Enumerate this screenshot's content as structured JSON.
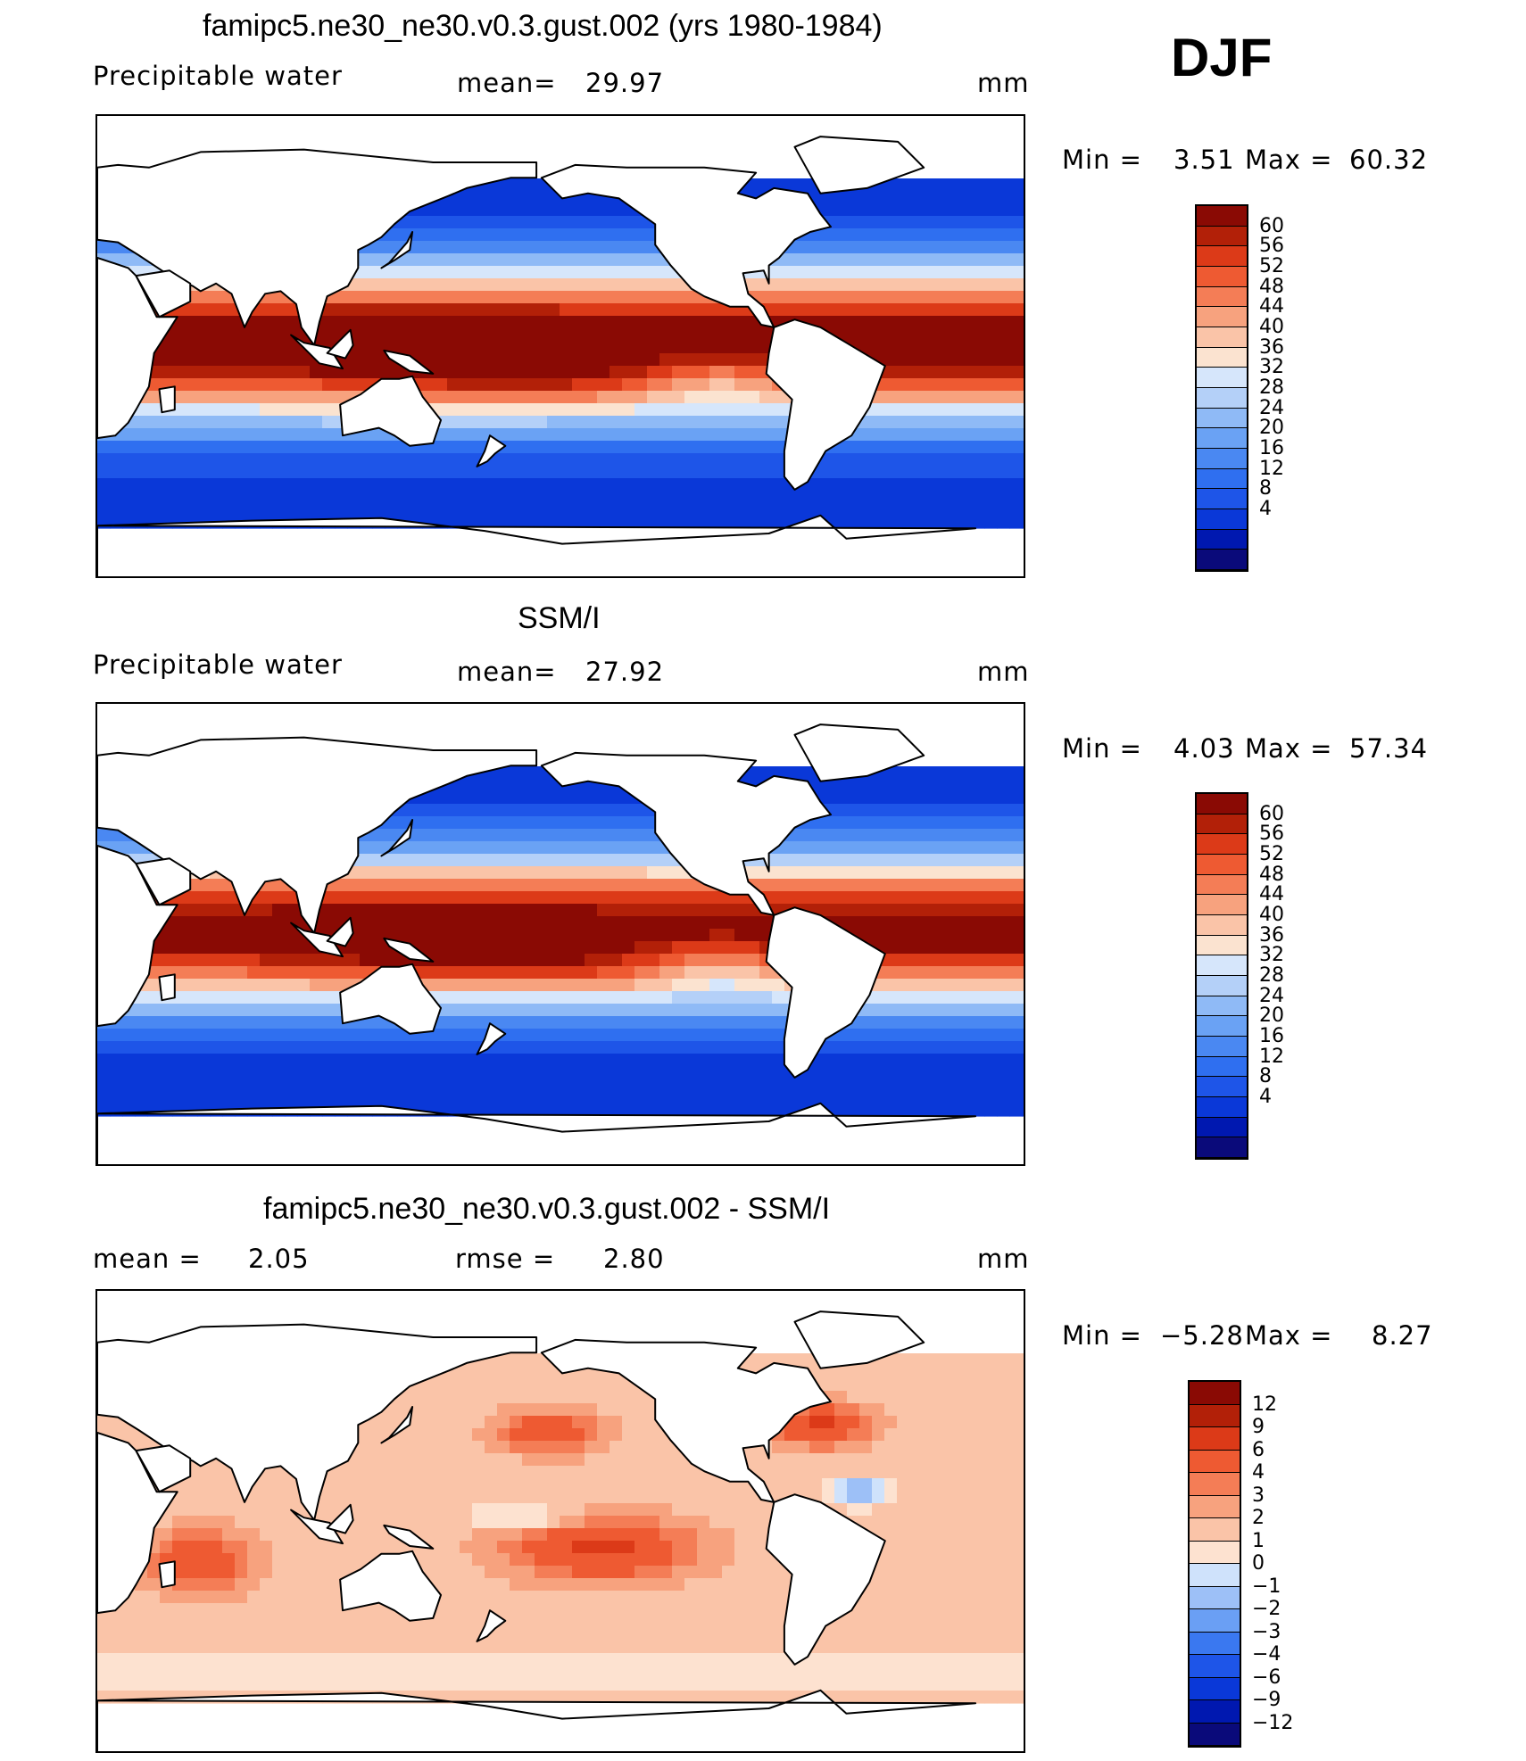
{
  "header": {
    "model_title": "famipc5.ne30_ne30.v0.3.gust.002 (yrs 1980-1984)",
    "season": "DJF"
  },
  "panels": [
    {
      "id": "model",
      "title": "famipc5.ne30_ne30.v0.3.gust.002 (yrs 1980-1984)",
      "left_label": "Precipitable  water",
      "mean_label": "mean=",
      "mean_value": "29.97",
      "units": "mm",
      "stats": {
        "min_label": "Min  =",
        "min_value": "3.51",
        "max_label": "Max  =",
        "max_value": "60.32"
      },
      "levels": [
        "60",
        "56",
        "52",
        "48",
        "44",
        "40",
        "36",
        "32",
        "28",
        "24",
        "20",
        "16",
        "12",
        "8",
        "4"
      ]
    },
    {
      "id": "obs",
      "title": "SSM/I",
      "left_label": "Precipitable  water",
      "mean_label": "mean=",
      "mean_value": "27.92",
      "units": "mm",
      "stats": {
        "min_label": "Min  =",
        "min_value": "4.03",
        "max_label": "Max  =",
        "max_value": "57.34"
      },
      "levels": [
        "60",
        "56",
        "52",
        "48",
        "44",
        "40",
        "36",
        "32",
        "28",
        "24",
        "20",
        "16",
        "12",
        "8",
        "4"
      ]
    },
    {
      "id": "diff",
      "title": "famipc5.ne30_ne30.v0.3.gust.002 - SSM/I",
      "mean_label": "mean  =",
      "mean_value": "2.05",
      "rmse_label": "rmse  =",
      "rmse_value": "2.80",
      "units": "mm",
      "stats": {
        "min_label": "Min  =",
        "min_value": "−5.28",
        "max_label": "Max  =",
        "max_value": "8.27"
      },
      "levels": [
        "12",
        "9",
        "6",
        "4",
        "3",
        "2",
        "1",
        "0",
        "−1",
        "−2",
        "−3",
        "−4",
        "−6",
        "−9",
        "−12"
      ]
    }
  ],
  "colors": {
    "pw_scale": [
      "#0a0a7a",
      "#0018b0",
      "#0a38d8",
      "#1e55e8",
      "#2f6ff0",
      "#4a88f2",
      "#6aa2f4",
      "#8fbaf6",
      "#b4d0f8",
      "#d6e6fb",
      "#fbe3d0",
      "#fac4a8",
      "#f7a27e",
      "#f47d56",
      "#ee5a32",
      "#dc3a18",
      "#b22008",
      "#8a0a04"
    ],
    "diff_scale": [
      "#0a0a7a",
      "#0018b0",
      "#0a38d8",
      "#1e55e8",
      "#3a78f0",
      "#6a9ff4",
      "#9dc0f7",
      "#cfe2fb",
      "#fde2d0",
      "#fac4a8",
      "#f7a27e",
      "#f47d56",
      "#ee5a32",
      "#dc3a18",
      "#b22008",
      "#8a0a04"
    ],
    "land": "#ffffff",
    "coast": "#000000"
  },
  "chart_data": [
    {
      "type": "heatmap",
      "title": "famipc5.ne30_ne30.v0.3.gust.002 (yrs 1980-1984)",
      "subtitle": "Precipitable water",
      "units": "mm",
      "mean": 29.97,
      "min": 3.51,
      "max": 60.32,
      "contour_levels": [
        4,
        8,
        12,
        16,
        20,
        24,
        28,
        32,
        36,
        40,
        44,
        48,
        52,
        56,
        60
      ],
      "x": "longitude (0 to 360, centered on Pacific)",
      "y": "latitude (-90 to 90)"
    },
    {
      "type": "heatmap",
      "title": "SSM/I",
      "subtitle": "Precipitable water",
      "units": "mm",
      "mean": 27.92,
      "min": 4.03,
      "max": 57.34,
      "contour_levels": [
        4,
        8,
        12,
        16,
        20,
        24,
        28,
        32,
        36,
        40,
        44,
        48,
        52,
        56,
        60
      ]
    },
    {
      "type": "heatmap",
      "title": "famipc5.ne30_ne30.v0.3.gust.002 - SSM/I",
      "units": "mm",
      "mean": 2.05,
      "rmse": 2.8,
      "min": -5.28,
      "max": 8.27,
      "contour_levels": [
        -12,
        -9,
        -6,
        -4,
        -3,
        -2,
        -1,
        0,
        1,
        2,
        3,
        4,
        6,
        9,
        12
      ]
    }
  ]
}
